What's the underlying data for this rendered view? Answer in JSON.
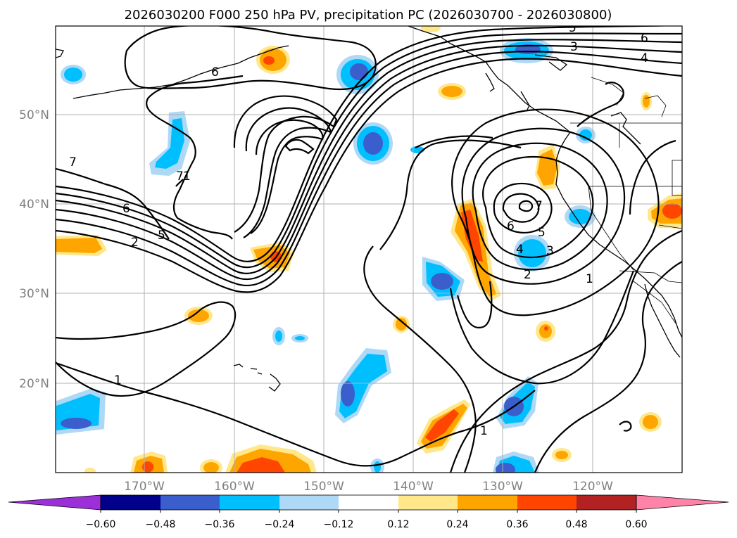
{
  "title": "2026030200 F000 250 hPa PV, precipitation PC (2026030700 - 2026030800)",
  "latitude_labels": [
    "50°N",
    "40°N",
    "30°N",
    "20°N"
  ],
  "longitude_labels": [
    "170°W",
    "160°W",
    "150°W",
    "140°W",
    "130°W",
    "120°W"
  ],
  "colorbar": {
    "ticks": [
      "−0.60",
      "−0.48",
      "−0.36",
      "−0.24",
      "−0.12",
      "0.12",
      "0.24",
      "0.36",
      "0.48",
      "0.60"
    ],
    "colors": [
      "#9b30d9",
      "#00008b",
      "#3a5fcd",
      "#00bfff",
      "#add8f6",
      "#ffffff",
      "#ffe78a",
      "#ffa500",
      "#ff4500",
      "#b22222",
      "#ff83a8"
    ]
  },
  "contour_labels": [
    "1",
    "1",
    "1",
    "1",
    "2",
    "2",
    "3",
    "3",
    "4",
    "4",
    "5",
    "5",
    "5",
    "6",
    "6",
    "6",
    "6",
    "7",
    "7",
    "7"
  ]
}
